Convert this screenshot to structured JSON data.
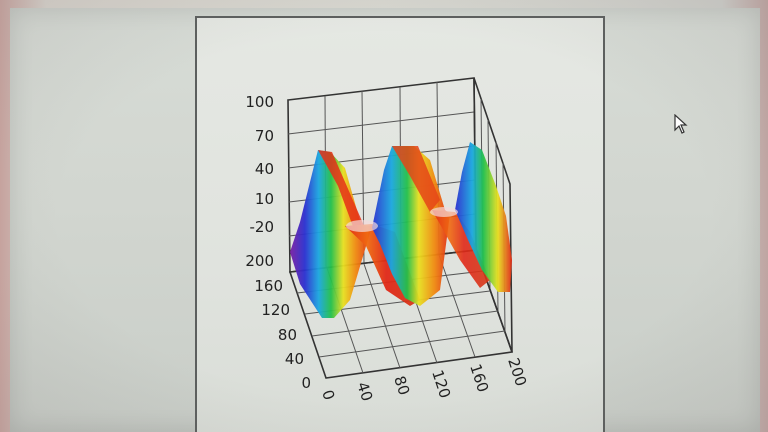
{
  "chart_data": {
    "type": "surface",
    "z_ticks": [
      "100",
      "70",
      "40",
      "10",
      "-20"
    ],
    "y_ticks": [
      "200",
      "160",
      "120",
      "80",
      "40",
      "0"
    ],
    "x_ticks": [
      "0",
      "40",
      "80",
      "120",
      "160",
      "200"
    ],
    "zlim": [
      -20,
      100
    ],
    "ylim": [
      0,
      200
    ],
    "xlim": [
      0,
      200
    ],
    "grid": true,
    "colormap": [
      "#7a1fa2",
      "#2a2fd0",
      "#1aa7e0",
      "#22c04a",
      "#e8e020",
      "#f08a10",
      "#e02818"
    ]
  },
  "cursor": {
    "icon": "mouse-pointer-icon"
  }
}
